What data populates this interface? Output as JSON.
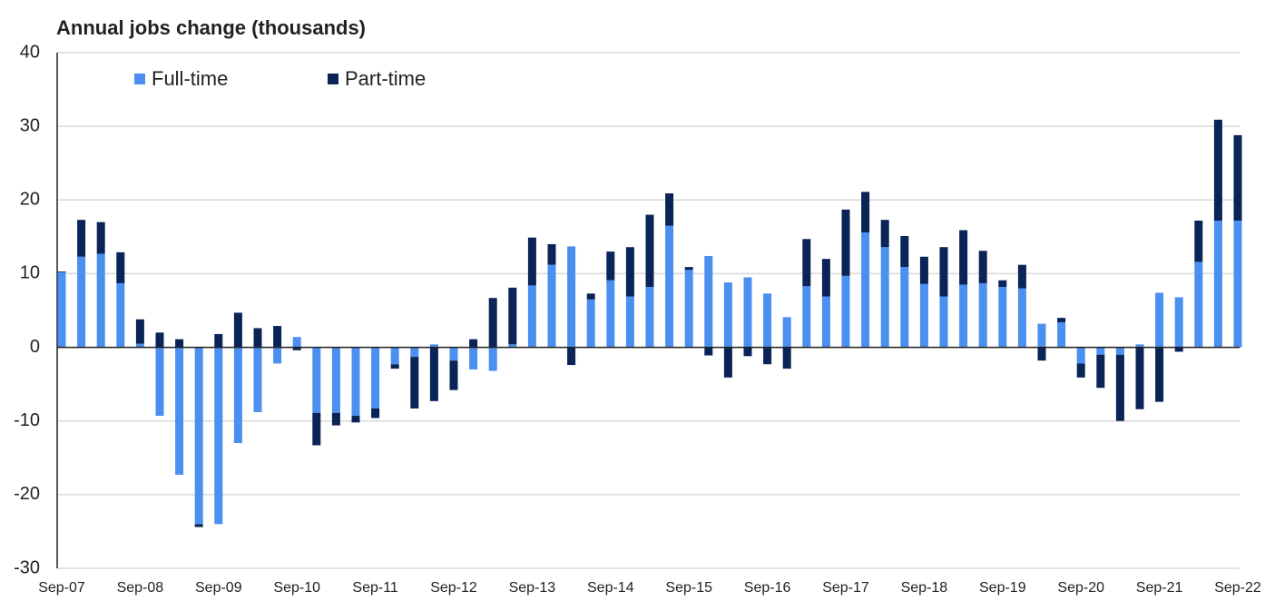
{
  "chart_data": {
    "type": "bar",
    "stacked": true,
    "title": "Annual jobs change (thousands)",
    "categories": [
      "Sep-07",
      null,
      null,
      null,
      "Sep-08",
      null,
      null,
      null,
      "Sep-09",
      null,
      null,
      null,
      "Sep-10",
      null,
      null,
      null,
      "Sep-11",
      null,
      null,
      null,
      "Sep-12",
      null,
      null,
      null,
      "Sep-13",
      null,
      null,
      null,
      "Sep-14",
      null,
      null,
      null,
      "Sep-15",
      null,
      null,
      null,
      "Sep-16",
      null,
      null,
      null,
      "Sep-17",
      null,
      null,
      null,
      "Sep-18",
      null,
      null,
      null,
      "Sep-19",
      null,
      null,
      null,
      "Sep-20",
      null,
      null,
      null,
      "Sep-21",
      null,
      null,
      null,
      "Sep-22"
    ],
    "series": [
      {
        "name": "Full-time",
        "color": "#4b8ff0",
        "values": [
          10.2,
          12.3,
          12.7,
          8.7,
          0.5,
          -9.3,
          -17.3,
          -24.0,
          -24.0,
          -13.0,
          -8.8,
          -2.2,
          1.4,
          -8.9,
          -8.9,
          -9.3,
          -8.3,
          -2.3,
          -1.3,
          0.4,
          -1.8,
          -3.0,
          -3.2,
          0.4,
          8.4,
          11.2,
          13.7,
          6.5,
          9.1,
          6.9,
          8.2,
          16.5,
          10.5,
          12.4,
          8.8,
          9.5,
          7.3,
          4.1,
          8.3,
          6.9,
          9.7,
          15.6,
          13.6,
          10.9,
          8.6,
          6.9,
          8.5,
          8.7,
          8.2,
          8.0,
          3.2,
          3.4,
          -2.2,
          -1.0,
          -1.0,
          0.4,
          7.4,
          6.8,
          11.6,
          17.2,
          17.2
        ]
      },
      {
        "name": "Part-time",
        "color": "#0b2458",
        "values": [
          0.1,
          5.0,
          4.3,
          4.2,
          3.3,
          2.0,
          1.1,
          -0.4,
          1.8,
          4.7,
          2.6,
          2.9,
          -0.4,
          -4.4,
          -1.7,
          -0.9,
          -1.3,
          -0.6,
          -7.0,
          -7.3,
          -4.0,
          1.1,
          6.7,
          7.7,
          6.5,
          2.8,
          -2.4,
          0.8,
          3.9,
          6.7,
          9.8,
          4.4,
          0.4,
          -1.1,
          -4.1,
          -1.2,
          -2.3,
          -2.9,
          6.4,
          5.1,
          9.0,
          5.5,
          3.7,
          4.2,
          3.7,
          6.7,
          7.4,
          4.4,
          0.9,
          3.2,
          -1.8,
          0.6,
          -1.9,
          -4.5,
          -9.0,
          -8.4,
          -7.4,
          -0.6,
          5.6,
          13.7,
          11.6
        ]
      }
    ],
    "ylim": [
      -30,
      40
    ],
    "yticks": [
      -30,
      -20,
      -10,
      0,
      10,
      20,
      30,
      40
    ],
    "grid": true,
    "legend": "top-left"
  }
}
